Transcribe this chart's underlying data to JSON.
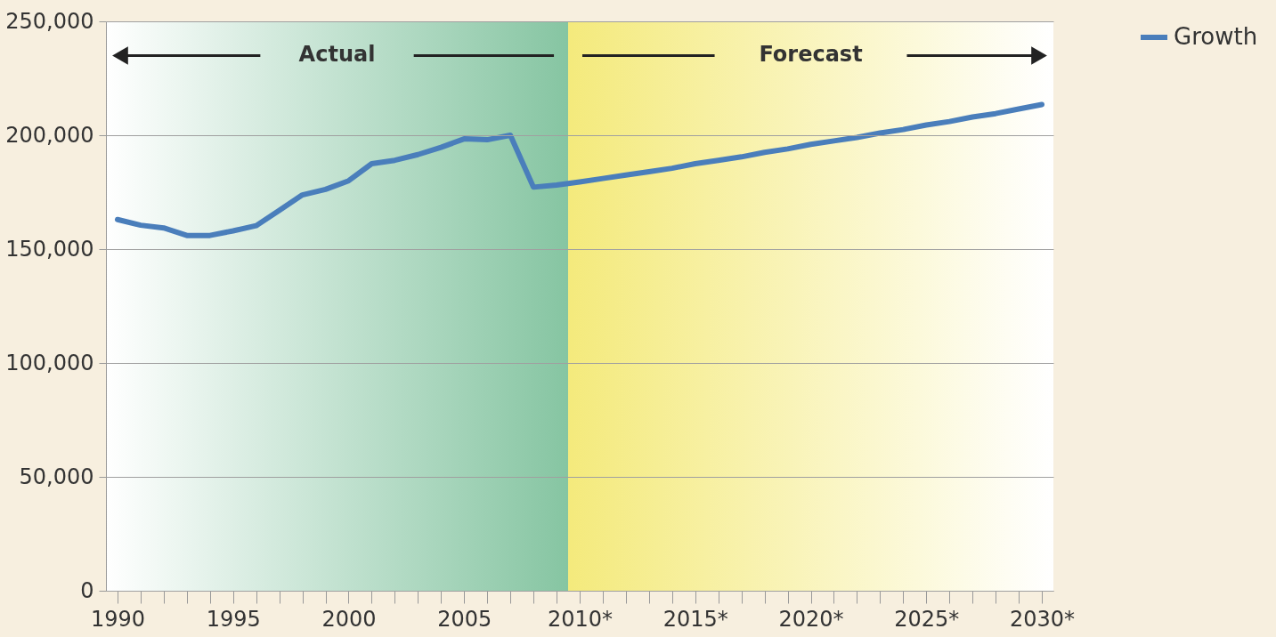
{
  "chart_data": {
    "type": "line",
    "x": [
      1990,
      1991,
      1992,
      1993,
      1994,
      1995,
      1996,
      1997,
      1998,
      1999,
      2000,
      2001,
      2002,
      2003,
      2004,
      2005,
      2006,
      2007,
      2008,
      2009,
      2010,
      2011,
      2012,
      2013,
      2014,
      2015,
      2016,
      2017,
      2018,
      2019,
      2020,
      2021,
      2022,
      2023,
      2024,
      2025,
      2026,
      2027,
      2028,
      2029,
      2030
    ],
    "series": [
      {
        "name": "Growth",
        "color": "#4a7ebb",
        "values": [
          163000,
          160500,
          159300,
          156000,
          156000,
          158000,
          160300,
          167000,
          173800,
          176200,
          180000,
          187500,
          189000,
          191500,
          194700,
          198400,
          198000,
          200000,
          177200,
          178100,
          179500,
          181000,
          182500,
          184000,
          185500,
          187500,
          189000,
          190500,
          192500,
          194000,
          196000,
          197500,
          199000,
          201000,
          202500,
          204500,
          206000,
          208000,
          209500,
          211500,
          213500
        ]
      }
    ],
    "xlim": [
      1989.5,
      2030.5
    ],
    "xticks": [
      {
        "value": 1990,
        "label": "1990"
      },
      {
        "value": 1991,
        "label": null
      },
      {
        "value": 1992,
        "label": null
      },
      {
        "value": 1993,
        "label": null
      },
      {
        "value": 1994,
        "label": null
      },
      {
        "value": 1995,
        "label": "1995"
      },
      {
        "value": 1996,
        "label": null
      },
      {
        "value": 1997,
        "label": null
      },
      {
        "value": 1998,
        "label": null
      },
      {
        "value": 1999,
        "label": null
      },
      {
        "value": 2000,
        "label": "2000"
      },
      {
        "value": 2001,
        "label": null
      },
      {
        "value": 2002,
        "label": null
      },
      {
        "value": 2003,
        "label": null
      },
      {
        "value": 2004,
        "label": null
      },
      {
        "value": 2005,
        "label": "2005"
      },
      {
        "value": 2006,
        "label": null
      },
      {
        "value": 2007,
        "label": null
      },
      {
        "value": 2008,
        "label": null
      },
      {
        "value": 2009,
        "label": null
      },
      {
        "value": 2010,
        "label": "2010*"
      },
      {
        "value": 2011,
        "label": null
      },
      {
        "value": 2012,
        "label": null
      },
      {
        "value": 2013,
        "label": null
      },
      {
        "value": 2014,
        "label": null
      },
      {
        "value": 2015,
        "label": "2015*"
      },
      {
        "value": 2016,
        "label": null
      },
      {
        "value": 2017,
        "label": null
      },
      {
        "value": 2018,
        "label": null
      },
      {
        "value": 2019,
        "label": null
      },
      {
        "value": 2020,
        "label": "2020*"
      },
      {
        "value": 2021,
        "label": null
      },
      {
        "value": 2022,
        "label": null
      },
      {
        "value": 2023,
        "label": null
      },
      {
        "value": 2024,
        "label": null
      },
      {
        "value": 2025,
        "label": "2025*"
      },
      {
        "value": 2026,
        "label": null
      },
      {
        "value": 2027,
        "label": null
      },
      {
        "value": 2028,
        "label": null
      },
      {
        "value": 2029,
        "label": null
      },
      {
        "value": 2030,
        "label": "2030*"
      }
    ],
    "ylim": [
      0,
      250000
    ],
    "yticks": [
      0,
      {
        "value": 50000,
        "label": "50,000"
      },
      {
        "value": 100000,
        "label": "100,000"
      },
      {
        "value": 150000,
        "label": "150,000"
      },
      {
        "value": 200000,
        "label": "200,000"
      },
      {
        "value": 250000,
        "label": "250,000"
      }
    ],
    "grid": "y",
    "legend": "right",
    "line_style": "solid",
    "marker": "none",
    "bands": [
      {
        "axis": "x",
        "from": 1989.5,
        "to": 2009.5,
        "label": "Actual",
        "color": "#86c5a2"
      },
      {
        "axis": "x",
        "from": 2009.5,
        "to": 2030.5,
        "label": "Forecast",
        "color": "#f4ea7c"
      }
    ]
  }
}
